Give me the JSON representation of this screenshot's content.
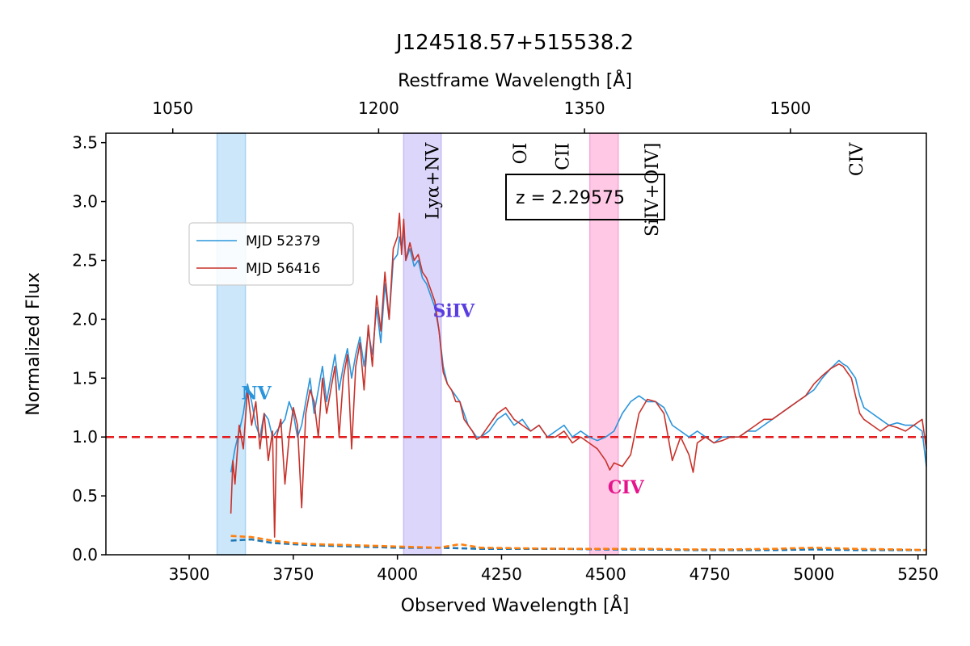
{
  "chart_data": {
    "type": "line",
    "title": "J124518.57+515538.2",
    "xlabel": "Observed Wavelength [Å]",
    "ylabel": "Normalized Flux",
    "top_xlabel": "Restframe Wavelength [Å]",
    "xlim": [
      3300,
      5270
    ],
    "ylim": [
      0,
      3.58
    ],
    "redshift": 2.29575,
    "redshift_label": "z = 2.29575",
    "xticks": [
      3500,
      3750,
      4000,
      4250,
      4500,
      4750,
      5000,
      5250
    ],
    "xtick_labels": [
      "3500",
      "3750",
      "4000",
      "4250",
      "4500",
      "4750",
      "5000",
      "5250"
    ],
    "yticks": [
      0,
      0.5,
      1.0,
      1.5,
      2.0,
      2.5,
      3.0,
      3.5
    ],
    "ytick_labels": [
      "0.0",
      "0.5",
      "1.0",
      "1.5",
      "2.0",
      "2.5",
      "3.0",
      "3.5"
    ],
    "top_ticks_rest": [
      1050,
      1200,
      1350,
      1500
    ],
    "top_tick_labels": [
      "1050",
      "1200",
      "1350",
      "1500"
    ],
    "continuum_level": 1.0,
    "grid": false,
    "legend_position": "upper-left",
    "series": [
      {
        "name": "MJD 52379",
        "color": "#2b95db",
        "x": [
          3600,
          3610,
          3620,
          3630,
          3640,
          3650,
          3660,
          3670,
          3680,
          3690,
          3700,
          3710,
          3720,
          3730,
          3740,
          3750,
          3760,
          3770,
          3780,
          3790,
          3800,
          3810,
          3820,
          3830,
          3840,
          3850,
          3860,
          3870,
          3880,
          3890,
          3900,
          3910,
          3920,
          3930,
          3940,
          3950,
          3960,
          3970,
          3980,
          3990,
          4000,
          4005,
          4010,
          4015,
          4020,
          4030,
          4040,
          4050,
          4060,
          4070,
          4080,
          4090,
          4100,
          4110,
          4120,
          4130,
          4140,
          4150,
          4160,
          4170,
          4180,
          4190,
          4200,
          4220,
          4240,
          4260,
          4280,
          4300,
          4320,
          4340,
          4360,
          4380,
          4400,
          4420,
          4440,
          4460,
          4480,
          4500,
          4520,
          4540,
          4560,
          4580,
          4600,
          4620,
          4640,
          4660,
          4680,
          4700,
          4720,
          4740,
          4760,
          4780,
          4800,
          4820,
          4840,
          4860,
          4880,
          4900,
          4920,
          4940,
          4960,
          4980,
          5000,
          5020,
          5040,
          5060,
          5070,
          5080,
          5090,
          5100,
          5110,
          5120,
          5140,
          5160,
          5180,
          5200,
          5220,
          5240,
          5260,
          5270
        ],
        "y": [
          0.7,
          0.9,
          1.05,
          1.2,
          1.45,
          1.3,
          1.1,
          1.0,
          1.2,
          1.15,
          1.0,
          1.05,
          1.1,
          1.15,
          1.3,
          1.2,
          1.0,
          1.1,
          1.3,
          1.5,
          1.2,
          1.4,
          1.6,
          1.3,
          1.5,
          1.7,
          1.4,
          1.6,
          1.75,
          1.5,
          1.7,
          1.85,
          1.6,
          1.9,
          1.7,
          2.1,
          1.8,
          2.3,
          2.0,
          2.5,
          2.55,
          2.7,
          2.6,
          2.75,
          2.5,
          2.6,
          2.45,
          2.5,
          2.35,
          2.3,
          2.2,
          2.1,
          1.9,
          1.6,
          1.45,
          1.4,
          1.35,
          1.3,
          1.2,
          1.1,
          1.05,
          1.0,
          1.0,
          1.05,
          1.15,
          1.2,
          1.1,
          1.15,
          1.05,
          1.1,
          1.0,
          1.05,
          1.1,
          1.0,
          1.05,
          1.0,
          0.97,
          1.0,
          1.05,
          1.2,
          1.3,
          1.35,
          1.3,
          1.3,
          1.25,
          1.1,
          1.05,
          1.0,
          1.05,
          1.0,
          0.95,
          1.0,
          1.0,
          1.0,
          1.05,
          1.05,
          1.1,
          1.15,
          1.2,
          1.25,
          1.3,
          1.35,
          1.4,
          1.5,
          1.58,
          1.65,
          1.62,
          1.6,
          1.55,
          1.5,
          1.35,
          1.25,
          1.2,
          1.15,
          1.1,
          1.12,
          1.1,
          1.1,
          1.05,
          0.75
        ]
      },
      {
        "name": "MJD 56416",
        "color": "#c8322b",
        "x": [
          3600,
          3605,
          3610,
          3620,
          3630,
          3640,
          3650,
          3660,
          3670,
          3680,
          3690,
          3700,
          3705,
          3710,
          3720,
          3730,
          3740,
          3750,
          3760,
          3770,
          3780,
          3790,
          3800,
          3810,
          3820,
          3830,
          3840,
          3850,
          3860,
          3870,
          3880,
          3890,
          3900,
          3910,
          3920,
          3930,
          3940,
          3950,
          3960,
          3970,
          3980,
          3990,
          4000,
          4005,
          4010,
          4015,
          4020,
          4030,
          4040,
          4050,
          4060,
          4070,
          4080,
          4090,
          4100,
          4110,
          4120,
          4130,
          4140,
          4150,
          4160,
          4170,
          4180,
          4190,
          4200,
          4220,
          4240,
          4260,
          4280,
          4300,
          4320,
          4340,
          4360,
          4380,
          4400,
          4420,
          4440,
          4460,
          4480,
          4500,
          4510,
          4520,
          4540,
          4560,
          4580,
          4600,
          4620,
          4640,
          4650,
          4660,
          4680,
          4700,
          4710,
          4720,
          4740,
          4760,
          4780,
          4800,
          4820,
          4840,
          4860,
          4880,
          4900,
          4920,
          4940,
          4960,
          4980,
          5000,
          5020,
          5040,
          5060,
          5070,
          5080,
          5090,
          5100,
          5110,
          5120,
          5140,
          5160,
          5180,
          5200,
          5220,
          5240,
          5260,
          5270
        ],
        "y": [
          0.35,
          0.8,
          0.6,
          1.1,
          0.9,
          1.4,
          1.1,
          1.3,
          0.9,
          1.2,
          0.8,
          1.05,
          0.15,
          1.0,
          1.15,
          0.6,
          1.0,
          1.25,
          1.1,
          0.4,
          1.2,
          1.4,
          1.3,
          1.0,
          1.5,
          1.2,
          1.4,
          1.6,
          1.0,
          1.5,
          1.7,
          0.9,
          1.6,
          1.8,
          1.4,
          1.95,
          1.6,
          2.2,
          1.9,
          2.4,
          2.0,
          2.6,
          2.7,
          2.9,
          2.55,
          2.85,
          2.5,
          2.65,
          2.5,
          2.55,
          2.4,
          2.35,
          2.25,
          2.15,
          1.9,
          1.55,
          1.45,
          1.4,
          1.3,
          1.3,
          1.15,
          1.1,
          1.05,
          0.98,
          1.0,
          1.1,
          1.2,
          1.25,
          1.15,
          1.1,
          1.05,
          1.1,
          1.0,
          1.0,
          1.05,
          0.95,
          1.0,
          0.95,
          0.9,
          0.8,
          0.72,
          0.78,
          0.75,
          0.85,
          1.2,
          1.32,
          1.3,
          1.2,
          1.0,
          0.8,
          1.0,
          0.85,
          0.7,
          0.95,
          1.0,
          0.95,
          0.97,
          1.0,
          1.0,
          1.05,
          1.1,
          1.15,
          1.15,
          1.2,
          1.25,
          1.3,
          1.35,
          1.45,
          1.52,
          1.58,
          1.62,
          1.6,
          1.55,
          1.5,
          1.35,
          1.2,
          1.15,
          1.1,
          1.05,
          1.1,
          1.08,
          1.05,
          1.1,
          1.15,
          0.9
        ]
      },
      {
        "name": "",
        "color": "#1f77b4",
        "style": "dashed-error",
        "x": [
          3600,
          3650,
          3700,
          3750,
          3800,
          3900,
          4000,
          4100,
          4200,
          4300,
          4400,
          4500,
          4600,
          4700,
          4800,
          4900,
          5000,
          5100,
          5200,
          5270
        ],
        "y": [
          0.12,
          0.13,
          0.1,
          0.09,
          0.08,
          0.07,
          0.06,
          0.06,
          0.05,
          0.05,
          0.05,
          0.045,
          0.045,
          0.04,
          0.04,
          0.04,
          0.045,
          0.04,
          0.04,
          0.04
        ]
      },
      {
        "name": "",
        "color": "#ff7f0e",
        "style": "dashed-error",
        "x": [
          3600,
          3650,
          3700,
          3750,
          3800,
          3900,
          4000,
          4100,
          4150,
          4200,
          4300,
          4400,
          4500,
          4600,
          4700,
          4800,
          4900,
          5000,
          5100,
          5200,
          5270
        ],
        "y": [
          0.16,
          0.15,
          0.12,
          0.1,
          0.09,
          0.08,
          0.07,
          0.06,
          0.09,
          0.06,
          0.055,
          0.05,
          0.05,
          0.05,
          0.045,
          0.045,
          0.05,
          0.06,
          0.05,
          0.045,
          0.04
        ]
      }
    ],
    "bands": [
      {
        "label": "NV",
        "x0": 3567,
        "x1": 3635,
        "fill": "#cce6fa",
        "edge": "#a9d3f2",
        "label_color": "#2b95db",
        "label_x": 3625,
        "label_y": 1.32
      },
      {
        "label": "SiIV",
        "x0": 4015,
        "x1": 4105,
        "fill": "#ddd6fb",
        "edge": "#c7bcf5",
        "label_color": "#5a3de0",
        "label_x": 4085,
        "label_y": 2.02
      },
      {
        "label": "CIV",
        "x0": 4462,
        "x1": 4530,
        "fill": "#ffc9e6",
        "edge": "#f7a8d6",
        "label_color": "#e6148c",
        "label_x": 4505,
        "label_y": 0.52
      }
    ],
    "line_labels": [
      {
        "text": "Lyα+NV",
        "rest": 1240,
        "top_y": 3.5
      },
      {
        "text": "OI",
        "rest": 1304,
        "top_y": 3.5
      },
      {
        "text": "CII",
        "rest": 1335,
        "top_y": 3.5
      },
      {
        "text": "SiIV+OIV]",
        "rest": 1400,
        "top_y": 3.5
      },
      {
        "text": "CIV",
        "rest": 1549,
        "top_y": 3.5
      }
    ]
  }
}
